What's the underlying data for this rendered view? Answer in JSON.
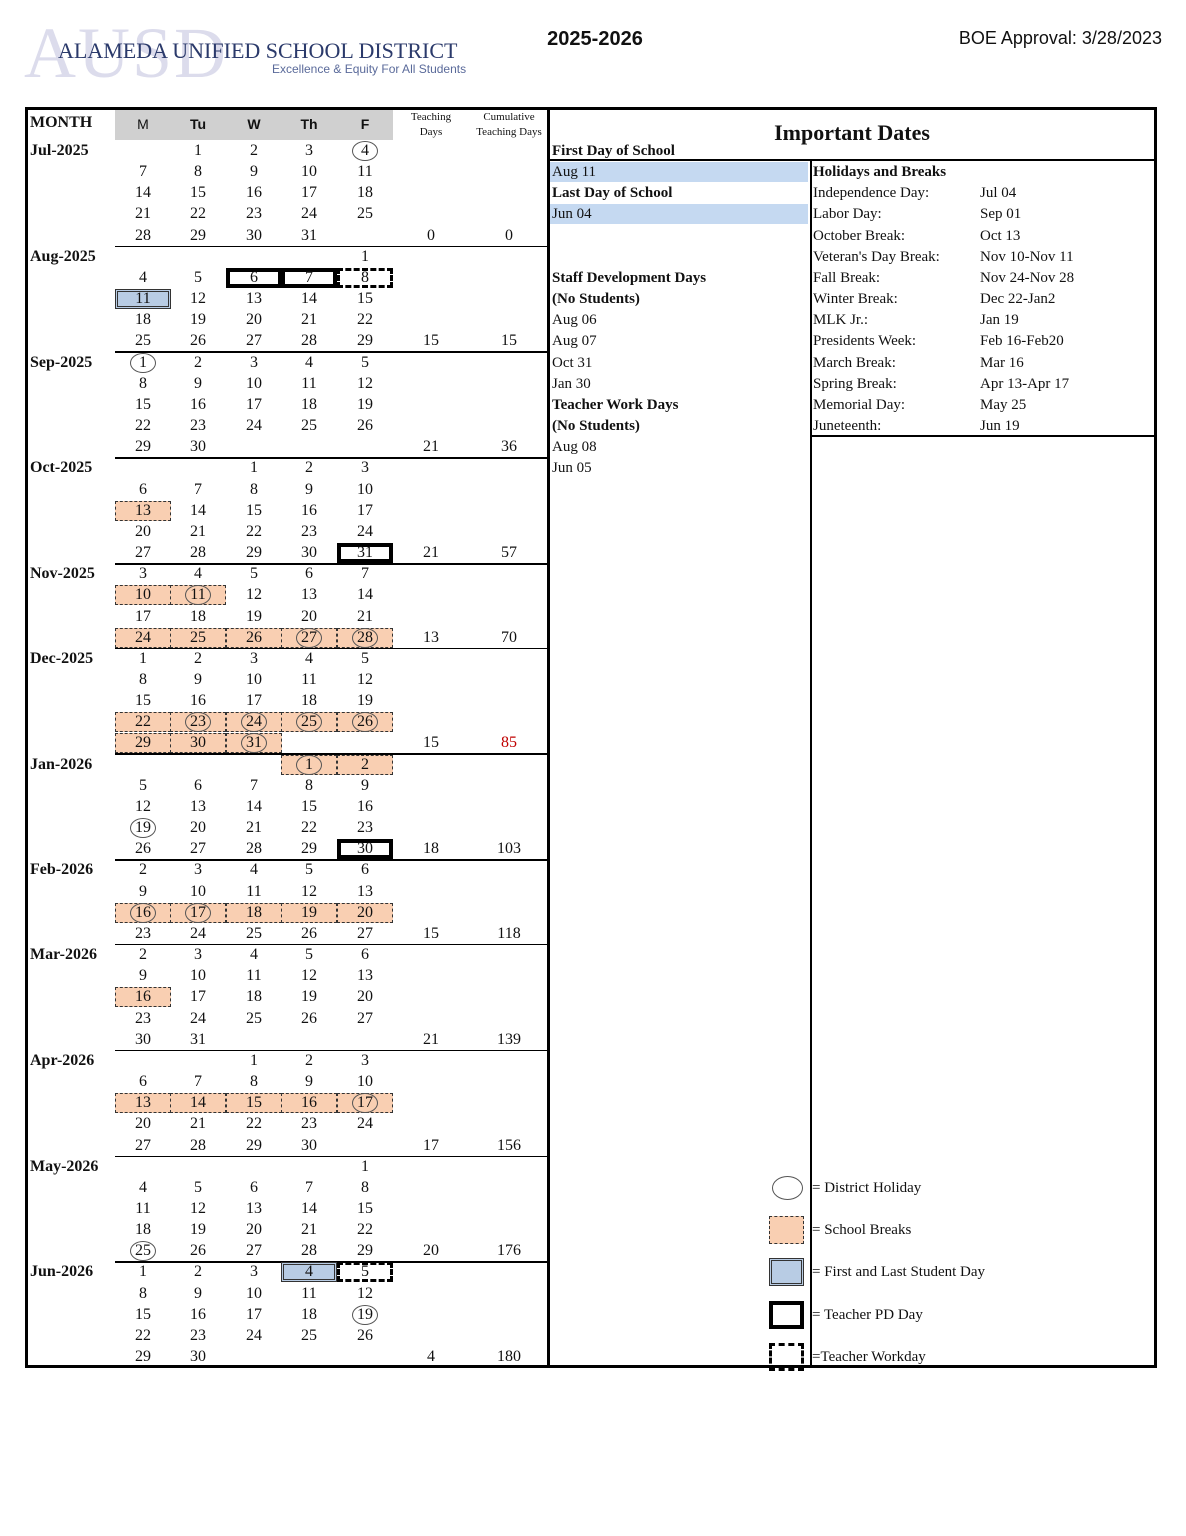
{
  "header": {
    "logo_watermark": "AUSD",
    "logo_title": "ALAMEDA UNIFIED SCHOOL DISTRICT",
    "logo_tagline": "Excellence & Equity For All Students",
    "year": "2025-2026",
    "approval": "BOE Approval: 3/28/2023"
  },
  "calendar": {
    "columns": [
      "MONTH",
      "M",
      "Tu",
      "W",
      "Th",
      "F",
      "Teaching Days",
      "Cumulative Teaching Days"
    ],
    "months": [
      {
        "label": "Jul-2025",
        "weeks": [
          [
            null,
            1,
            2,
            3,
            4
          ],
          [
            7,
            8,
            9,
            10,
            11
          ],
          [
            14,
            15,
            16,
            17,
            18
          ],
          [
            21,
            22,
            23,
            24,
            25
          ],
          [
            28,
            29,
            30,
            31,
            null
          ]
        ],
        "teaching_days": 0,
        "cumulative": 0,
        "marks": {
          "holiday": [
            [
              0,
              4
            ]
          ]
        }
      },
      {
        "label": "Aug-2025",
        "weeks": [
          [
            null,
            null,
            null,
            null,
            1
          ],
          [
            4,
            5,
            6,
            7,
            8
          ],
          [
            11,
            12,
            13,
            14,
            15
          ],
          [
            18,
            19,
            20,
            21,
            22
          ],
          [
            25,
            26,
            27,
            28,
            29
          ]
        ],
        "teaching_days": 15,
        "cumulative": 15,
        "marks": {
          "pd": [
            [
              1,
              2
            ],
            [
              1,
              3
            ]
          ],
          "workday": [
            [
              1,
              4
            ]
          ],
          "first_last": [
            [
              2,
              0
            ]
          ]
        }
      },
      {
        "label": "Sep-2025",
        "weeks": [
          [
            1,
            2,
            3,
            4,
            5
          ],
          [
            8,
            9,
            10,
            11,
            12
          ],
          [
            15,
            16,
            17,
            18,
            19
          ],
          [
            22,
            23,
            24,
            25,
            26
          ],
          [
            29,
            30,
            null,
            null,
            null
          ]
        ],
        "teaching_days": 21,
        "cumulative": 36,
        "marks": {
          "holiday": [
            [
              0,
              0
            ]
          ]
        }
      },
      {
        "label": "Oct-2025",
        "weeks": [
          [
            null,
            null,
            1,
            2,
            3
          ],
          [
            6,
            7,
            8,
            9,
            10
          ],
          [
            13,
            14,
            15,
            16,
            17
          ],
          [
            20,
            21,
            22,
            23,
            24
          ],
          [
            27,
            28,
            29,
            30,
            31
          ]
        ],
        "teaching_days": 21,
        "cumulative": 57,
        "marks": {
          "break": [
            [
              2,
              0
            ]
          ],
          "pd": [
            [
              4,
              4
            ]
          ]
        }
      },
      {
        "label": "Nov-2025",
        "weeks": [
          [
            3,
            4,
            5,
            6,
            7
          ],
          [
            10,
            11,
            12,
            13,
            14
          ],
          [
            17,
            18,
            19,
            20,
            21
          ],
          [
            24,
            25,
            26,
            27,
            28
          ]
        ],
        "teaching_days": 13,
        "cumulative": 70,
        "marks": {
          "break": [
            [
              1,
              0
            ],
            [
              1,
              1
            ],
            [
              3,
              0
            ],
            [
              3,
              1
            ],
            [
              3,
              2
            ],
            [
              3,
              3
            ],
            [
              3,
              4
            ]
          ],
          "holiday": [
            [
              1,
              1
            ],
            [
              3,
              3
            ],
            [
              3,
              4
            ]
          ]
        }
      },
      {
        "label": "Dec-2025",
        "weeks": [
          [
            1,
            2,
            3,
            4,
            5
          ],
          [
            8,
            9,
            10,
            11,
            12
          ],
          [
            15,
            16,
            17,
            18,
            19
          ],
          [
            22,
            23,
            24,
            25,
            26
          ],
          [
            29,
            30,
            31,
            null,
            null
          ]
        ],
        "teaching_days": 15,
        "cumulative": 85,
        "cumulative_color": "#c00000",
        "marks": {
          "break": [
            [
              3,
              0
            ],
            [
              3,
              1
            ],
            [
              3,
              2
            ],
            [
              3,
              3
            ],
            [
              3,
              4
            ],
            [
              4,
              0
            ],
            [
              4,
              1
            ],
            [
              4,
              2
            ]
          ],
          "holiday": [
            [
              3,
              1
            ],
            [
              3,
              2
            ],
            [
              3,
              3
            ],
            [
              3,
              4
            ],
            [
              4,
              2
            ]
          ]
        }
      },
      {
        "label": "Jan-2026",
        "weeks": [
          [
            null,
            null,
            null,
            1,
            2
          ],
          [
            5,
            6,
            7,
            8,
            9
          ],
          [
            12,
            13,
            14,
            15,
            16
          ],
          [
            19,
            20,
            21,
            22,
            23
          ],
          [
            26,
            27,
            28,
            29,
            30
          ]
        ],
        "teaching_days": 18,
        "cumulative": 103,
        "marks": {
          "break": [
            [
              0,
              3
            ],
            [
              0,
              4
            ]
          ],
          "holiday": [
            [
              0,
              3
            ],
            [
              3,
              0
            ]
          ],
          "pd": [
            [
              4,
              4
            ]
          ]
        }
      },
      {
        "label": "Feb-2026",
        "weeks": [
          [
            2,
            3,
            4,
            5,
            6
          ],
          [
            9,
            10,
            11,
            12,
            13
          ],
          [
            16,
            17,
            18,
            19,
            20
          ],
          [
            23,
            24,
            25,
            26,
            27
          ]
        ],
        "teaching_days": 15,
        "cumulative": 118,
        "marks": {
          "break": [
            [
              2,
              0
            ],
            [
              2,
              1
            ],
            [
              2,
              2
            ],
            [
              2,
              3
            ],
            [
              2,
              4
            ]
          ],
          "holiday": [
            [
              2,
              0
            ],
            [
              2,
              1
            ]
          ]
        }
      },
      {
        "label": "Mar-2026",
        "weeks": [
          [
            2,
            3,
            4,
            5,
            6
          ],
          [
            9,
            10,
            11,
            12,
            13
          ],
          [
            16,
            17,
            18,
            19,
            20
          ],
          [
            23,
            24,
            25,
            26,
            27
          ],
          [
            30,
            31,
            null,
            null,
            null
          ]
        ],
        "teaching_days": 21,
        "cumulative": 139,
        "marks": {
          "break": [
            [
              2,
              0
            ]
          ]
        }
      },
      {
        "label": "Apr-2026",
        "weeks": [
          [
            null,
            null,
            1,
            2,
            3
          ],
          [
            6,
            7,
            8,
            9,
            10
          ],
          [
            13,
            14,
            15,
            16,
            17
          ],
          [
            20,
            21,
            22,
            23,
            24
          ],
          [
            27,
            28,
            29,
            30,
            null
          ]
        ],
        "teaching_days": 17,
        "cumulative": 156,
        "marks": {
          "break": [
            [
              2,
              0
            ],
            [
              2,
              1
            ],
            [
              2,
              2
            ],
            [
              2,
              3
            ],
            [
              2,
              4
            ]
          ],
          "holiday": [
            [
              2,
              4
            ]
          ]
        }
      },
      {
        "label": "May-2026",
        "weeks": [
          [
            null,
            null,
            null,
            null,
            1
          ],
          [
            4,
            5,
            6,
            7,
            8
          ],
          [
            11,
            12,
            13,
            14,
            15
          ],
          [
            18,
            19,
            20,
            21,
            22
          ],
          [
            25,
            26,
            27,
            28,
            29
          ]
        ],
        "teaching_days": 20,
        "cumulative": 176,
        "marks": {
          "holiday": [
            [
              4,
              0
            ]
          ]
        }
      },
      {
        "label": "Jun-2026",
        "weeks": [
          [
            1,
            2,
            3,
            4,
            5
          ],
          [
            8,
            9,
            10,
            11,
            12
          ],
          [
            15,
            16,
            17,
            18,
            19
          ],
          [
            22,
            23,
            24,
            25,
            26
          ],
          [
            29,
            30,
            null,
            null,
            null
          ]
        ],
        "teaching_days": 4,
        "cumulative": 180,
        "marks": {
          "first_last": [
            [
              0,
              3
            ]
          ],
          "workday": [
            [
              0,
              4
            ]
          ],
          "holiday": [
            [
              2,
              4
            ]
          ]
        }
      }
    ]
  },
  "important_dates": {
    "title": "Important Dates",
    "groups": [
      {
        "headings": [
          "First Day of School"
        ],
        "items": [
          "Aug 11"
        ],
        "highlight": true
      },
      {
        "headings": [
          "Last Day of School"
        ],
        "items": [
          "Jun 04"
        ],
        "highlight": true
      },
      {
        "headings": [
          "Staff Development Days",
          "(No Students)"
        ],
        "items": [
          "Aug 06",
          "Aug 07",
          "Oct 31",
          "Jan 30"
        ]
      },
      {
        "headings": [
          "Teacher Work Days",
          "(No Students)"
        ],
        "items": [
          "Aug 08",
          "Jun 05"
        ]
      }
    ],
    "holidays_title": "Holidays and Breaks",
    "holidays": [
      {
        "name": "Independence Day:",
        "date": "Jul 04"
      },
      {
        "name": "Labor Day:",
        "date": "Sep 01"
      },
      {
        "name": "October Break:",
        "date": "Oct 13"
      },
      {
        "name": "Veteran's Day Break:",
        "date": "Nov 10-Nov 11"
      },
      {
        "name": "Fall Break:",
        "date": "Nov 24-Nov 28"
      },
      {
        "name": "Winter Break:",
        "date": "Dec 22-Jan2"
      },
      {
        "name": "MLK Jr.:",
        "date": "Jan 19"
      },
      {
        "name": "Presidents Week:",
        "date": "Feb 16-Feb20"
      },
      {
        "name": "March Break:",
        "date": "Mar 16"
      },
      {
        "name": "Spring Break:",
        "date": "Apr 13-Apr 17"
      },
      {
        "name": "Memorial Day:",
        "date": "May 25"
      },
      {
        "name": "Juneteenth:",
        "date": "Jun 19"
      }
    ]
  },
  "legend": [
    {
      "symbol": "holiday",
      "label": "= District Holiday"
    },
    {
      "symbol": "break",
      "label": "= School Breaks"
    },
    {
      "symbol": "first_last",
      "label": "= First and Last Student Day"
    },
    {
      "symbol": "pd",
      "label": "= Teacher PD Day"
    },
    {
      "symbol": "workday",
      "label": "=Teacher Workday"
    }
  ]
}
